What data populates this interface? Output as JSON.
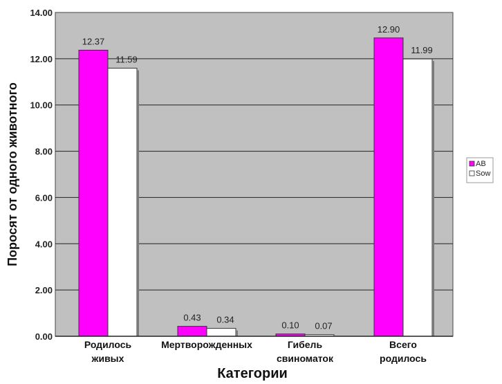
{
  "chart_data": {
    "type": "bar",
    "title": "",
    "xlabel": "Категории",
    "ylabel": "Поросят от одного животного",
    "ylim": [
      0,
      14
    ],
    "yticks": [
      "0.00",
      "2.00",
      "4.00",
      "6.00",
      "8.00",
      "10.00",
      "12.00",
      "14.00"
    ],
    "grid": true,
    "legend": "right",
    "categories": [
      [
        "Родилось",
        "живых"
      ],
      [
        "Мертворожденных"
      ],
      [
        "Гибель",
        "свиноматок"
      ],
      [
        "Всего",
        "родилось"
      ]
    ],
    "series": [
      {
        "name": "AB",
        "color": "#ff00ff",
        "values": [
          12.37,
          0.43,
          0.1,
          12.9
        ],
        "labels": [
          "12.37",
          "0.43",
          "0.10",
          "12.90"
        ]
      },
      {
        "name": "Sow",
        "color": "#ffffff",
        "values": [
          11.59,
          0.34,
          0.07,
          11.99
        ],
        "labels": [
          "11.59",
          "0.34",
          "0.07",
          "11.99"
        ]
      }
    ]
  }
}
